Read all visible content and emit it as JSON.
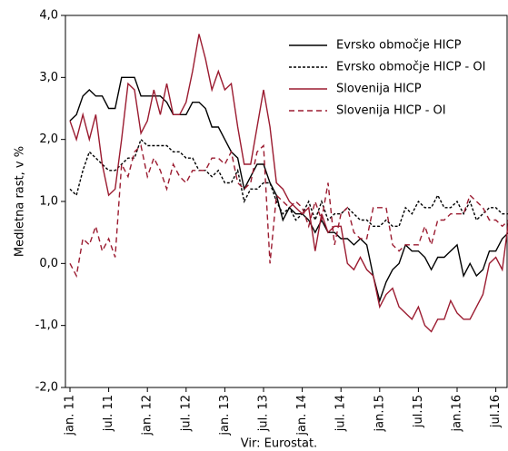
{
  "chart_data": {
    "type": "line",
    "y_label": "Medletna rast, v %",
    "source": "Vir: Eurostat.",
    "categories": [
      "jan. 11",
      null,
      null,
      null,
      null,
      null,
      "jul. 11",
      null,
      null,
      null,
      null,
      null,
      "jan. 12",
      null,
      null,
      null,
      null,
      null,
      "jul. 12",
      null,
      null,
      null,
      null,
      null,
      "jan. 13",
      null,
      null,
      null,
      null,
      null,
      "jul. 13",
      null,
      null,
      null,
      null,
      null,
      "jan. 14",
      null,
      null,
      null,
      null,
      null,
      "jul. 14",
      null,
      null,
      null,
      null,
      null,
      "jan.15",
      null,
      null,
      null,
      null,
      null,
      "jul.15",
      null,
      null,
      null,
      null,
      null,
      "jan.16",
      null,
      null,
      null,
      null,
      null,
      "jul.16",
      null,
      null
    ],
    "series": [
      {
        "name": "Evrsko območje HICP",
        "color": "#000000",
        "dash": "none",
        "values": [
          2.3,
          2.4,
          2.7,
          2.8,
          2.7,
          2.7,
          2.5,
          2.5,
          3.0,
          3.0,
          3.0,
          2.7,
          2.7,
          2.7,
          2.7,
          2.6,
          2.4,
          2.4,
          2.4,
          2.6,
          2.6,
          2.5,
          2.2,
          2.2,
          2.0,
          1.8,
          1.7,
          1.2,
          1.4,
          1.6,
          1.6,
          1.3,
          1.1,
          0.7,
          0.9,
          0.8,
          0.8,
          0.7,
          0.5,
          0.7,
          0.5,
          0.5,
          0.4,
          0.4,
          0.3,
          0.4,
          0.3,
          -0.2,
          -0.6,
          -0.3,
          -0.1,
          0.0,
          0.3,
          0.2,
          0.2,
          0.1,
          -0.1,
          0.1,
          0.1,
          0.2,
          0.3,
          -0.2,
          0.0,
          -0.2,
          -0.1,
          0.2,
          0.2,
          0.4,
          0.5
        ]
      },
      {
        "name": "Evrsko območje HICP - OI",
        "color": "#000000",
        "dash": "3,2",
        "values": [
          1.2,
          1.1,
          1.5,
          1.8,
          1.7,
          1.6,
          1.5,
          1.5,
          1.6,
          1.7,
          1.7,
          2.0,
          1.9,
          1.9,
          1.9,
          1.9,
          1.8,
          1.8,
          1.7,
          1.7,
          1.5,
          1.5,
          1.4,
          1.5,
          1.3,
          1.3,
          1.5,
          1.0,
          1.2,
          1.2,
          1.3,
          1.3,
          1.0,
          0.8,
          0.9,
          0.7,
          0.8,
          1.0,
          0.7,
          1.0,
          0.7,
          0.8,
          0.8,
          0.9,
          0.8,
          0.7,
          0.7,
          0.6,
          0.6,
          0.7,
          0.6,
          0.6,
          0.9,
          0.8,
          1.0,
          0.9,
          0.9,
          1.1,
          0.9,
          0.9,
          1.0,
          0.8,
          1.0,
          0.7,
          0.8,
          0.9,
          0.9,
          0.8,
          0.8
        ]
      },
      {
        "name": "Slovenija HICP",
        "color": "#9b1b30",
        "dash": "none",
        "values": [
          2.3,
          2.0,
          2.4,
          2.0,
          2.4,
          1.6,
          1.1,
          1.2,
          2.0,
          2.9,
          2.8,
          2.1,
          2.3,
          2.8,
          2.4,
          2.9,
          2.4,
          2.4,
          2.6,
          3.1,
          3.7,
          3.3,
          2.8,
          3.1,
          2.8,
          2.9,
          2.2,
          1.6,
          1.6,
          2.2,
          2.8,
          2.2,
          1.3,
          1.2,
          1.0,
          0.9,
          0.8,
          0.9,
          0.2,
          0.8,
          0.5,
          0.6,
          0.6,
          0.0,
          -0.1,
          0.1,
          -0.1,
          -0.2,
          -0.7,
          -0.5,
          -0.4,
          -0.7,
          -0.8,
          -0.9,
          -0.7,
          -1.0,
          -1.1,
          -0.9,
          -0.9,
          -0.6,
          -0.8,
          -0.9,
          -0.9,
          -0.7,
          -0.5,
          0.0,
          0.1,
          -0.1,
          0.7
        ]
      },
      {
        "name": "Slovenija HICP - OI",
        "color": "#9b1b30",
        "dash": "6,4",
        "values": [
          0.0,
          -0.2,
          0.4,
          0.3,
          0.6,
          0.2,
          0.4,
          0.1,
          1.6,
          1.4,
          1.8,
          1.9,
          1.4,
          1.7,
          1.5,
          1.2,
          1.6,
          1.4,
          1.3,
          1.5,
          1.5,
          1.5,
          1.7,
          1.7,
          1.6,
          1.8,
          1.3,
          1.2,
          1.3,
          1.8,
          1.9,
          0.0,
          1.1,
          1.0,
          0.9,
          1.0,
          0.9,
          0.6,
          1.0,
          0.7,
          1.3,
          0.3,
          0.8,
          0.9,
          0.5,
          0.4,
          0.4,
          0.9,
          0.9,
          0.9,
          0.3,
          0.2,
          0.3,
          0.3,
          0.3,
          0.6,
          0.3,
          0.7,
          0.7,
          0.8,
          0.8,
          0.8,
          1.1,
          1.0,
          0.9,
          0.7,
          0.7,
          0.6,
          0.7
        ]
      }
    ],
    "ylim": [
      -2,
      4
    ],
    "yticks": [
      {
        "value": -2,
        "label": "-2,0"
      },
      {
        "value": -1,
        "label": "-1,0"
      },
      {
        "value": 0,
        "label": "0,0"
      },
      {
        "value": 1,
        "label": "1,0"
      },
      {
        "value": 2,
        "label": "2,0"
      },
      {
        "value": 3,
        "label": "3,0"
      },
      {
        "value": 4,
        "label": "4,0"
      }
    ],
    "legend": "upper right"
  }
}
